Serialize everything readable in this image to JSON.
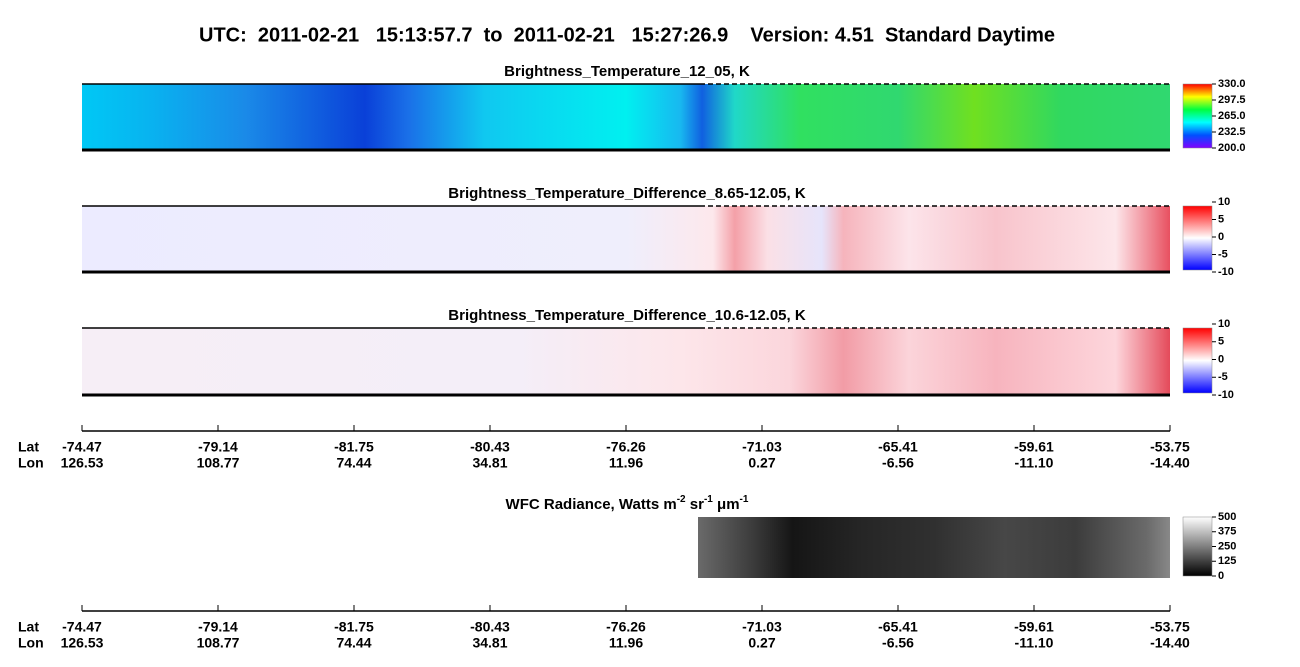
{
  "title": "UTC:  2011-02-21   15:13:57.7  to  2011-02-21   15:27:26.9    Version: 4.51  Standard Daytime",
  "panels": [
    {
      "title": "Brightness_Temperature_12_05, K",
      "clim": [
        200,
        330
      ],
      "cticks": [
        {
          "value": 330,
          "label": "330.0"
        },
        297.5,
        {
          "value": 265,
          "label": "265.0"
        },
        232.5,
        {
          "value": 200,
          "label": "200.0"
        }
      ]
    },
    {
      "title": "Brightness_Temperature_Difference_8.65-12.05, K",
      "clim": [
        -10,
        10
      ],
      "cticks": [
        10,
        5,
        0,
        -5,
        -10
      ]
    },
    {
      "title": "Brightness_Temperature_Difference_10.6-12.05, K",
      "clim": [
        -10,
        10
      ],
      "cticks": [
        10,
        5,
        0,
        -5,
        -10
      ]
    },
    {
      "title_parts": [
        "WFC Radiance, Watts m",
        "-2",
        " sr",
        "-1",
        " μm",
        "-1"
      ],
      "clim": [
        0,
        500
      ],
      "cticks": [
        500,
        375,
        250,
        125,
        0
      ]
    }
  ],
  "axes": [
    {
      "lat_label": "Lat",
      "lon_label": "Lon",
      "lat": [
        "-74.47",
        "-79.14",
        "-81.75",
        "-80.43",
        "-76.26",
        "-71.03",
        "-65.41",
        "-59.61",
        "-53.75"
      ],
      "lon": [
        "126.53",
        "108.77",
        "74.44",
        "34.81",
        "11.96",
        "0.27",
        "-6.56",
        "-11.10",
        "-14.40"
      ]
    },
    {
      "lat_label": "Lat",
      "lon_label": "Lon",
      "lat": [
        "-74.47",
        "-79.14",
        "-81.75",
        "-80.43",
        "-76.26",
        "-71.03",
        "-65.41",
        "-59.61",
        "-53.75"
      ],
      "lon": [
        "126.53",
        "108.77",
        "74.44",
        "34.81",
        "11.96",
        "0.27",
        "-6.56",
        "-11.10",
        "-14.40"
      ]
    }
  ]
}
